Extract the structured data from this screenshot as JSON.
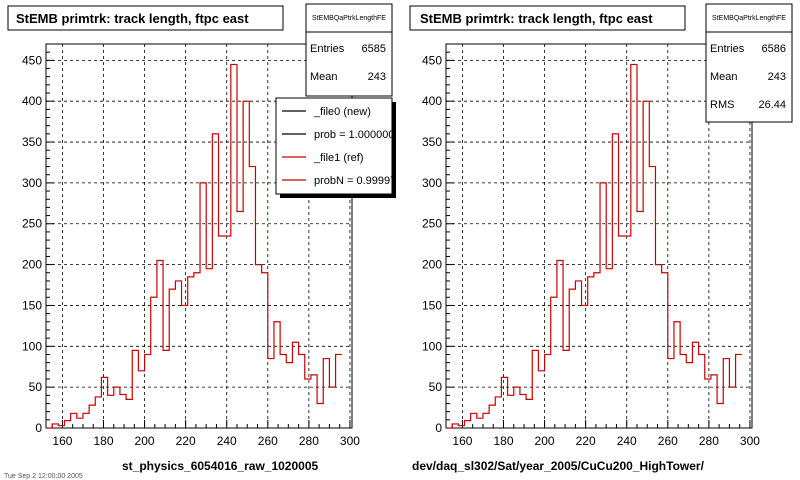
{
  "footer_text": "Tue Sep 2 12:00:00 2005",
  "chart_data": [
    {
      "type": "histogram",
      "title": "StEMB primtrk: track length, ftpc east",
      "xlabel": "st_physics_6054016_raw_1020005",
      "xlim": [
        152,
        301
      ],
      "ylim": [
        0,
        470
      ],
      "grid": true,
      "x_ticks": [
        160,
        180,
        200,
        220,
        240,
        260,
        280,
        300
      ],
      "y_ticks": [
        0,
        50,
        100,
        150,
        200,
        250,
        300,
        350,
        400,
        450
      ],
      "stats": {
        "name": "StEMBQaPtrkLengthFE",
        "rows": [
          {
            "label": "Entries",
            "value": "6585"
          },
          {
            "label": "Mean",
            "value": "243"
          }
        ]
      },
      "legend": {
        "placement": "top-right",
        "entries": [
          {
            "label": "_file0 (new)",
            "color": "#000000"
          },
          {
            "label": "prob = 1.000000",
            "color": "#000000"
          },
          {
            "label": "_file1 (ref)",
            "color": "#cc0000"
          },
          {
            "label": "probN = 0.99997",
            "color": "#cc0000"
          }
        ]
      },
      "bin_width": 3,
      "bin_edges_start": 152,
      "series": [
        {
          "color": "#cc0000",
          "values": [
            0,
            5,
            3,
            9,
            18,
            12,
            18,
            28,
            38,
            62,
            40,
            50,
            41,
            35,
            95,
            70,
            90,
            160,
            205,
            95,
            170,
            180,
            150,
            185,
            190,
            300,
            195,
            360,
            235,
            235,
            445,
            265,
            400,
            320,
            200,
            190,
            85,
            130,
            90,
            80,
            105,
            90,
            60,
            65,
            30,
            85,
            50,
            90
          ]
        }
      ]
    },
    {
      "type": "histogram",
      "title": "StEMB primtrk: track length, ftpc east",
      "xlabel": "dev/daq_sl302/Sat/year_2005/CuCu200_HighTower/",
      "xlim": [
        152,
        301
      ],
      "ylim": [
        0,
        470
      ],
      "grid": true,
      "x_ticks": [
        160,
        180,
        200,
        220,
        240,
        260,
        280,
        300
      ],
      "y_ticks": [
        0,
        50,
        100,
        150,
        200,
        250,
        300,
        350,
        400,
        450
      ],
      "stats": {
        "name": "StEMBQaPtrkLengthFE",
        "rows": [
          {
            "label": "Entries",
            "value": "6586"
          },
          {
            "label": "Mean",
            "value": "243"
          },
          {
            "label": "RMS",
            "value": "26.44"
          }
        ]
      },
      "bin_width": 3,
      "bin_edges_start": 152,
      "series": [
        {
          "color": "#cc0000",
          "values": [
            0,
            5,
            3,
            9,
            18,
            12,
            18,
            28,
            38,
            62,
            40,
            50,
            41,
            35,
            95,
            70,
            90,
            160,
            205,
            95,
            170,
            180,
            150,
            185,
            190,
            300,
            195,
            360,
            235,
            235,
            445,
            265,
            400,
            320,
            200,
            190,
            85,
            130,
            90,
            80,
            105,
            90,
            60,
            65,
            30,
            85,
            50,
            90
          ]
        }
      ]
    }
  ]
}
